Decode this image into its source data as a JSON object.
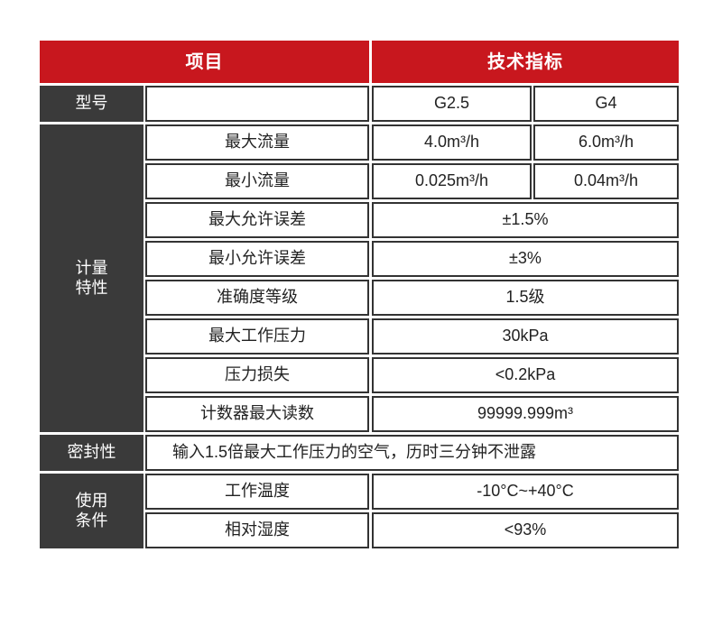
{
  "colors": {
    "header_red": "#c8171e",
    "label_dark": "#3a3a3a",
    "border": "#333333"
  },
  "header": {
    "item": "项目",
    "spec": "技术指标"
  },
  "model": {
    "label": "型号",
    "values": [
      "G2.5",
      "G4"
    ]
  },
  "metering": {
    "group_label": [
      "计量",
      "特性"
    ],
    "rows": [
      {
        "label": "最大流量",
        "values": [
          "4.0m³/h",
          "6.0m³/h"
        ]
      },
      {
        "label": "最小流量",
        "values": [
          "0.025m³/h",
          "0.04m³/h"
        ]
      },
      {
        "label": "最大允许误差",
        "value": "±1.5%"
      },
      {
        "label": "最小允许误差",
        "value": "±3%"
      },
      {
        "label": "准确度等级",
        "value": "1.5级"
      },
      {
        "label": "最大工作压力",
        "value": "30kPa"
      },
      {
        "label": "压力损失",
        "value": "<0.2kPa"
      },
      {
        "label": "计数器最大读数",
        "value": "99999.999m³"
      }
    ]
  },
  "sealing": {
    "label": "密封性",
    "value": "输入1.5倍最大工作压力的空气，历时三分钟不泄露"
  },
  "conditions": {
    "group_label": [
      "使用",
      "条件"
    ],
    "rows": [
      {
        "label": "工作温度",
        "value": "-10°C~+40°C"
      },
      {
        "label": "相对湿度",
        "value": "<93%"
      }
    ]
  }
}
